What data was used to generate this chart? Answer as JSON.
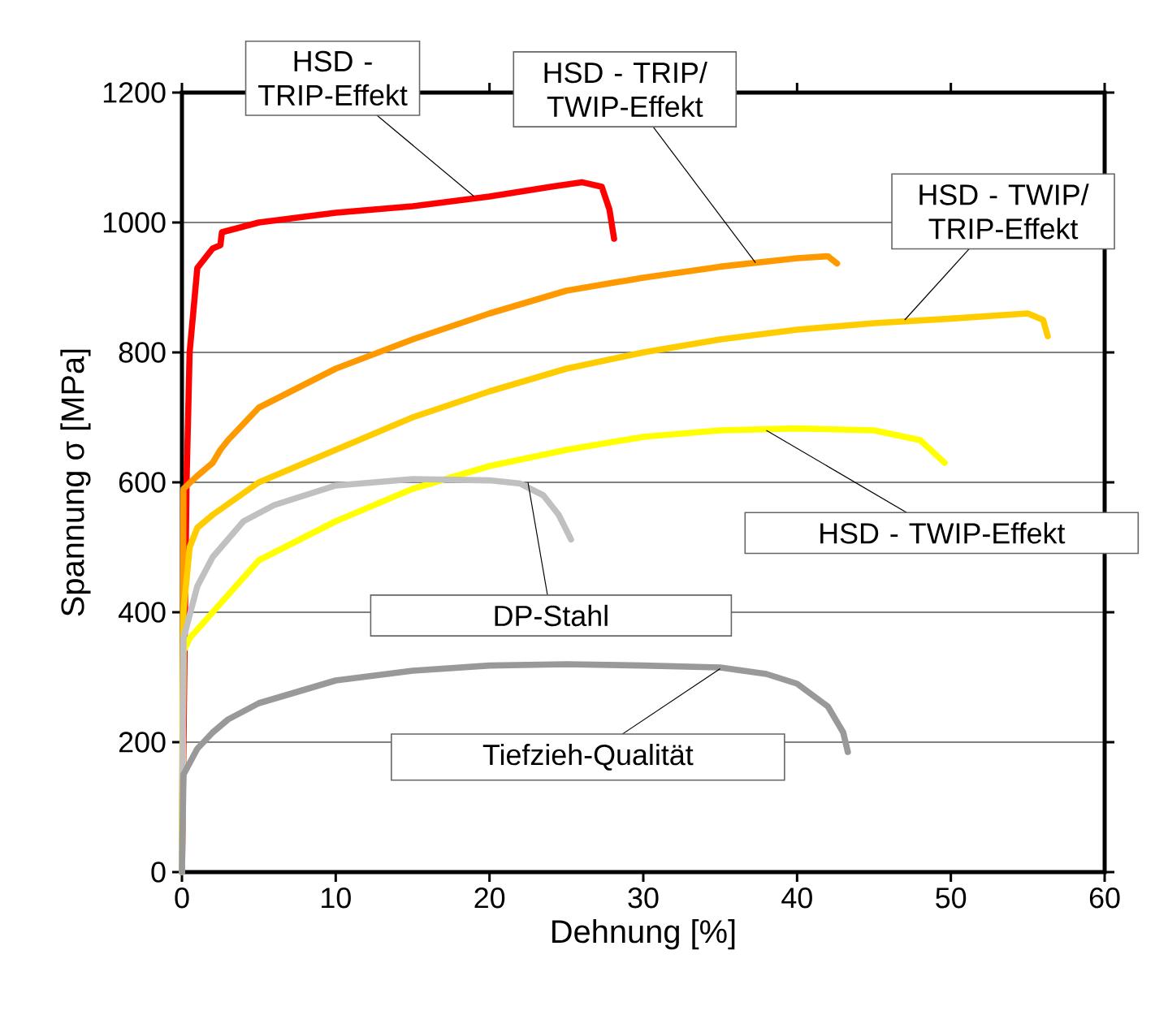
{
  "chart_data": {
    "type": "line",
    "xlabel": "Dehnung [%]",
    "ylabel": "Spannung σ [MPa]",
    "xlim": [
      0,
      60
    ],
    "ylim": [
      0,
      1200
    ],
    "xticks": [
      0,
      10,
      20,
      30,
      40,
      50,
      60
    ],
    "yticks": [
      0,
      200,
      400,
      600,
      800,
      1000,
      1200
    ],
    "grid": "y",
    "marker": "none",
    "line_style": "solid",
    "series": [
      {
        "color": "#ff0000",
        "x": [
          0,
          0.3,
          0.5,
          1,
          2,
          2.5,
          2.6,
          5,
          10,
          15,
          20,
          24,
          26,
          27.3,
          27.8,
          28.1
        ],
        "values": [
          0,
          600,
          800,
          930,
          960,
          965,
          985,
          1000,
          1015,
          1025,
          1040,
          1055,
          1062,
          1055,
          1020,
          975
        ]
      },
      {
        "color": "#ff9900",
        "x": [
          0,
          0.1,
          1,
          2,
          2.5,
          3,
          5,
          10,
          15,
          20,
          25,
          30,
          35,
          40,
          42,
          42.6
        ],
        "values": [
          0,
          590,
          610,
          630,
          650,
          665,
          715,
          775,
          820,
          860,
          895,
          915,
          932,
          945,
          948,
          937
        ]
      },
      {
        "color": "#ffcc00",
        "x": [
          0,
          0.1,
          0.5,
          1,
          2,
          5,
          10,
          15,
          20,
          25,
          30,
          35,
          40,
          45,
          50,
          55,
          56,
          56.3
        ],
        "values": [
          0,
          400,
          500,
          530,
          550,
          600,
          650,
          700,
          740,
          775,
          800,
          820,
          835,
          845,
          852,
          860,
          850,
          825
        ]
      },
      {
        "color": "#ffff00",
        "x": [
          0,
          0.1,
          0.5,
          2,
          5,
          10,
          15,
          20,
          25,
          30,
          35,
          40,
          45,
          48,
          49.6
        ],
        "values": [
          0,
          340,
          360,
          400,
          480,
          540,
          590,
          625,
          650,
          670,
          680,
          683,
          680,
          665,
          630
        ]
      },
      {
        "color": "#c0c0c0",
        "x": [
          0,
          0.1,
          1,
          2,
          4,
          6,
          10,
          15,
          20,
          22,
          23.5,
          24.5,
          25.3
        ],
        "values": [
          0,
          360,
          440,
          485,
          540,
          565,
          595,
          605,
          603,
          598,
          580,
          550,
          512
        ]
      },
      {
        "color": "#999999",
        "x": [
          0,
          0.1,
          1,
          2,
          3,
          5,
          10,
          15,
          20,
          25,
          30,
          35,
          38,
          40,
          42,
          43,
          43.3
        ],
        "values": [
          0,
          150,
          190,
          215,
          235,
          260,
          295,
          310,
          318,
          320,
          318,
          315,
          305,
          290,
          255,
          215,
          185
        ]
      }
    ],
    "annotations": [
      {
        "text": "HSD - TRIP-Effekt",
        "x": 19,
        "y": 1040
      },
      {
        "text": "HSD - TRIP/ TWIP-Effekt",
        "x": 37.3,
        "y": 938
      },
      {
        "text": "HSD - TWIP/ TRIP-Effekt",
        "x": 47,
        "y": 850
      },
      {
        "text": "HSD - TWIP-Effekt",
        "x": 38,
        "y": 680
      },
      {
        "text": "DP-Stahl",
        "x": 22.5,
        "y": 600
      },
      {
        "text": "Tiefzieh-Qualität",
        "x": 35,
        "y": 313
      }
    ]
  }
}
